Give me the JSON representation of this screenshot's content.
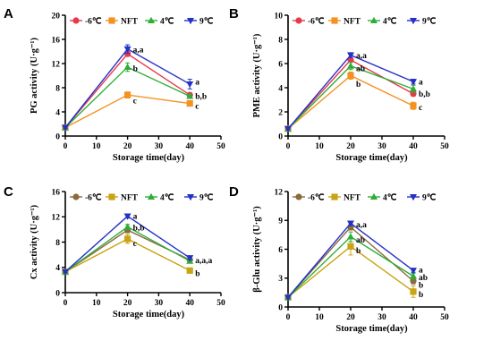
{
  "figure": {
    "legend_labels": [
      "-6℃",
      "NFT",
      "4℃",
      "9℃"
    ]
  },
  "chart_data": [
    {
      "type": "line",
      "panel": "A",
      "xlabel": "Storage time(day)",
      "ylabel": "PG activity (U·g⁻¹)",
      "xlim": [
        0,
        50
      ],
      "ylim": [
        0,
        20
      ],
      "xticks": [
        0,
        10,
        20,
        30,
        40,
        50
      ],
      "yticks": [
        0,
        4,
        8,
        12,
        16,
        20
      ],
      "x": [
        0,
        20,
        40
      ],
      "series": [
        {
          "name": "-6℃",
          "color": "#e8394a",
          "marker": "circle",
          "values": [
            1.4,
            13.6,
            6.8
          ],
          "errors": [
            0.1,
            0.4,
            0.3
          ]
        },
        {
          "name": "NFT",
          "color": "#f39221",
          "marker": "square",
          "values": [
            1.4,
            6.8,
            5.4
          ],
          "errors": [
            0.1,
            0.5,
            0.3
          ]
        },
        {
          "name": "4℃",
          "color": "#2eae38",
          "marker": "triangle-up",
          "values": [
            1.4,
            11.4,
            6.6
          ],
          "errors": [
            0.1,
            0.7,
            0.3
          ]
        },
        {
          "name": "9℃",
          "color": "#2530c8",
          "marker": "triangle-down",
          "values": [
            1.4,
            14.4,
            8.6
          ],
          "errors": [
            0.1,
            0.7,
            0.8
          ]
        }
      ],
      "annotations": [
        {
          "text": "a,a",
          "x": 20,
          "y": 14.3
        },
        {
          "text": "b",
          "x": 20,
          "y": 11.2
        },
        {
          "text": "c",
          "x": 20,
          "y": 5.9
        },
        {
          "text": "a",
          "x": 40,
          "y": 9.0
        },
        {
          "text": "b,b",
          "x": 40,
          "y": 6.6
        },
        {
          "text": "c",
          "x": 40,
          "y": 5.0
        }
      ]
    },
    {
      "type": "line",
      "panel": "B",
      "xlabel": "Storage time(day)",
      "ylabel": "PME activity (U·g⁻¹)",
      "xlim": [
        0,
        50
      ],
      "ylim": [
        0,
        10
      ],
      "xticks": [
        0,
        10,
        20,
        30,
        40,
        50
      ],
      "yticks": [
        0,
        2,
        4,
        6,
        8,
        10
      ],
      "x": [
        0,
        20,
        40
      ],
      "series": [
        {
          "name": "-6℃",
          "color": "#e8394a",
          "marker": "circle",
          "values": [
            0.6,
            6.3,
            3.5
          ],
          "errors": [
            0.05,
            0.2,
            0.2
          ]
        },
        {
          "name": "NFT",
          "color": "#f39221",
          "marker": "square",
          "values": [
            0.6,
            5.0,
            2.5
          ],
          "errors": [
            0.05,
            0.3,
            0.3
          ]
        },
        {
          "name": "4℃",
          "color": "#2eae38",
          "marker": "triangle-up",
          "values": [
            0.6,
            5.8,
            3.9
          ],
          "errors": [
            0.05,
            0.3,
            0.3
          ]
        },
        {
          "name": "9℃",
          "color": "#2530c8",
          "marker": "triangle-down",
          "values": [
            0.6,
            6.7,
            4.5
          ],
          "errors": [
            0.05,
            0.2,
            0.2
          ]
        }
      ],
      "annotations": [
        {
          "text": "a,a",
          "x": 20,
          "y": 6.7
        },
        {
          "text": "ab",
          "x": 20,
          "y": 5.6
        },
        {
          "text": "b",
          "x": 20,
          "y": 4.3
        },
        {
          "text": "a",
          "x": 40,
          "y": 4.5
        },
        {
          "text": "b,b",
          "x": 40,
          "y": 3.5
        },
        {
          "text": "c",
          "x": 40,
          "y": 2.4
        }
      ]
    },
    {
      "type": "line",
      "panel": "C",
      "xlabel": "Storage time(day)",
      "ylabel": "Cx activity (U·g⁻¹)",
      "xlim": [
        0,
        50
      ],
      "ylim": [
        0,
        16
      ],
      "xticks": [
        0,
        10,
        20,
        30,
        40,
        50
      ],
      "yticks": [
        0,
        4,
        8,
        12,
        16
      ],
      "x": [
        0,
        20,
        40
      ],
      "series": [
        {
          "name": "-6℃",
          "color": "#8b6a3e",
          "marker": "circle",
          "values": [
            3.3,
            9.9,
            5.2
          ],
          "errors": [
            0.1,
            0.4,
            0.3
          ]
        },
        {
          "name": "NFT",
          "color": "#c9a414",
          "marker": "square",
          "values": [
            3.3,
            8.5,
            3.5
          ],
          "errors": [
            0.1,
            0.7,
            0.4
          ]
        },
        {
          "name": "4℃",
          "color": "#2eae38",
          "marker": "triangle-up",
          "values": [
            3.3,
            10.4,
            5.0
          ],
          "errors": [
            0.1,
            0.4,
            0.3
          ]
        },
        {
          "name": "9℃",
          "color": "#2530c8",
          "marker": "triangle-down",
          "values": [
            3.3,
            12.1,
            5.5
          ],
          "errors": [
            0.1,
            0.3,
            0.3
          ]
        }
      ],
      "annotations": [
        {
          "text": "a",
          "x": 20,
          "y": 12.1
        },
        {
          "text": "b,b",
          "x": 20,
          "y": 10.3
        },
        {
          "text": "c",
          "x": 20,
          "y": 7.8
        },
        {
          "text": "a,a,a",
          "x": 40,
          "y": 5.1
        },
        {
          "text": "b",
          "x": 40,
          "y": 3.1
        }
      ]
    },
    {
      "type": "line",
      "panel": "D",
      "xlabel": "Storage time(day)",
      "ylabel": "β-Glu activity (U·g⁻¹)",
      "xlim": [
        0,
        50
      ],
      "ylim": [
        0,
        12
      ],
      "xticks": [
        0,
        10,
        20,
        30,
        40,
        50
      ],
      "yticks": [
        0,
        3,
        6,
        9,
        12
      ],
      "x": [
        0,
        20,
        40
      ],
      "series": [
        {
          "name": "-6℃",
          "color": "#8b6a3e",
          "marker": "circle",
          "values": [
            1.0,
            8.3,
            2.7
          ],
          "errors": [
            0.05,
            0.3,
            0.3
          ]
        },
        {
          "name": "NFT",
          "color": "#c9a414",
          "marker": "square",
          "values": [
            1.0,
            6.3,
            1.6
          ],
          "errors": [
            0.05,
            0.9,
            0.6
          ]
        },
        {
          "name": "4℃",
          "color": "#2eae38",
          "marker": "triangle-up",
          "values": [
            1.0,
            7.3,
            3.2
          ],
          "errors": [
            0.05,
            0.5,
            0.3
          ]
        },
        {
          "name": "9℃",
          "color": "#2530c8",
          "marker": "triangle-down",
          "values": [
            1.0,
            8.7,
            3.8
          ],
          "errors": [
            0.05,
            0.2,
            0.2
          ]
        }
      ],
      "annotations": [
        {
          "text": "a,a",
          "x": 20,
          "y": 8.6
        },
        {
          "text": "ab",
          "x": 20,
          "y": 7.0
        },
        {
          "text": "b",
          "x": 20,
          "y": 5.9
        },
        {
          "text": "a",
          "x": 40,
          "y": 3.9
        },
        {
          "text": "ab",
          "x": 40,
          "y": 3.1
        },
        {
          "text": "b",
          "x": 40,
          "y": 2.3
        },
        {
          "text": "b",
          "x": 40,
          "y": 1.3
        }
      ]
    }
  ]
}
